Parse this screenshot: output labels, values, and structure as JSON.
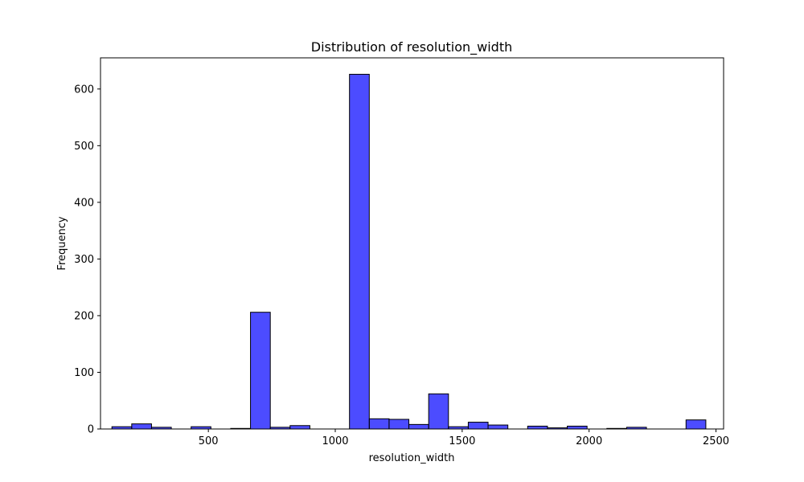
{
  "chart_data": {
    "type": "bar",
    "title": "Distribution of resolution_width",
    "xlabel": "resolution_width",
    "ylabel": "Frequency",
    "xlim": [
      75,
      2530
    ],
    "ylim": [
      0,
      655
    ],
    "x_ticks": [
      500,
      1000,
      1500,
      2000,
      2500
    ],
    "y_ticks": [
      0,
      100,
      200,
      300,
      400,
      500,
      600
    ],
    "bar_color": "#0000ff",
    "bar_opacity": 0.7,
    "edge_color": "#000000",
    "grid": false,
    "bins": [
      {
        "x0": 120,
        "x1": 198,
        "count": 4
      },
      {
        "x0": 198,
        "x1": 276,
        "count": 9
      },
      {
        "x0": 276,
        "x1": 354,
        "count": 3
      },
      {
        "x0": 354,
        "x1": 432,
        "count": 0
      },
      {
        "x0": 432,
        "x1": 510,
        "count": 4
      },
      {
        "x0": 510,
        "x1": 588,
        "count": 0
      },
      {
        "x0": 588,
        "x1": 666,
        "count": 1
      },
      {
        "x0": 666,
        "x1": 744,
        "count": 206
      },
      {
        "x0": 744,
        "x1": 822,
        "count": 3
      },
      {
        "x0": 822,
        "x1": 900,
        "count": 6
      },
      {
        "x0": 900,
        "x1": 978,
        "count": 0
      },
      {
        "x0": 978,
        "x1": 1056,
        "count": 0
      },
      {
        "x0": 1056,
        "x1": 1134,
        "count": 626
      },
      {
        "x0": 1134,
        "x1": 1212,
        "count": 18
      },
      {
        "x0": 1212,
        "x1": 1290,
        "count": 17
      },
      {
        "x0": 1290,
        "x1": 1368,
        "count": 8
      },
      {
        "x0": 1368,
        "x1": 1446,
        "count": 62
      },
      {
        "x0": 1446,
        "x1": 1524,
        "count": 4
      },
      {
        "x0": 1524,
        "x1": 1602,
        "count": 12
      },
      {
        "x0": 1602,
        "x1": 1680,
        "count": 7
      },
      {
        "x0": 1680,
        "x1": 1758,
        "count": 0
      },
      {
        "x0": 1758,
        "x1": 1836,
        "count": 5
      },
      {
        "x0": 1836,
        "x1": 1914,
        "count": 2
      },
      {
        "x0": 1914,
        "x1": 1992,
        "count": 5
      },
      {
        "x0": 1992,
        "x1": 2070,
        "count": 0
      },
      {
        "x0": 2070,
        "x1": 2148,
        "count": 1
      },
      {
        "x0": 2148,
        "x1": 2226,
        "count": 3
      },
      {
        "x0": 2226,
        "x1": 2304,
        "count": 0
      },
      {
        "x0": 2304,
        "x1": 2382,
        "count": 0
      },
      {
        "x0": 2382,
        "x1": 2460,
        "count": 16
      }
    ]
  }
}
